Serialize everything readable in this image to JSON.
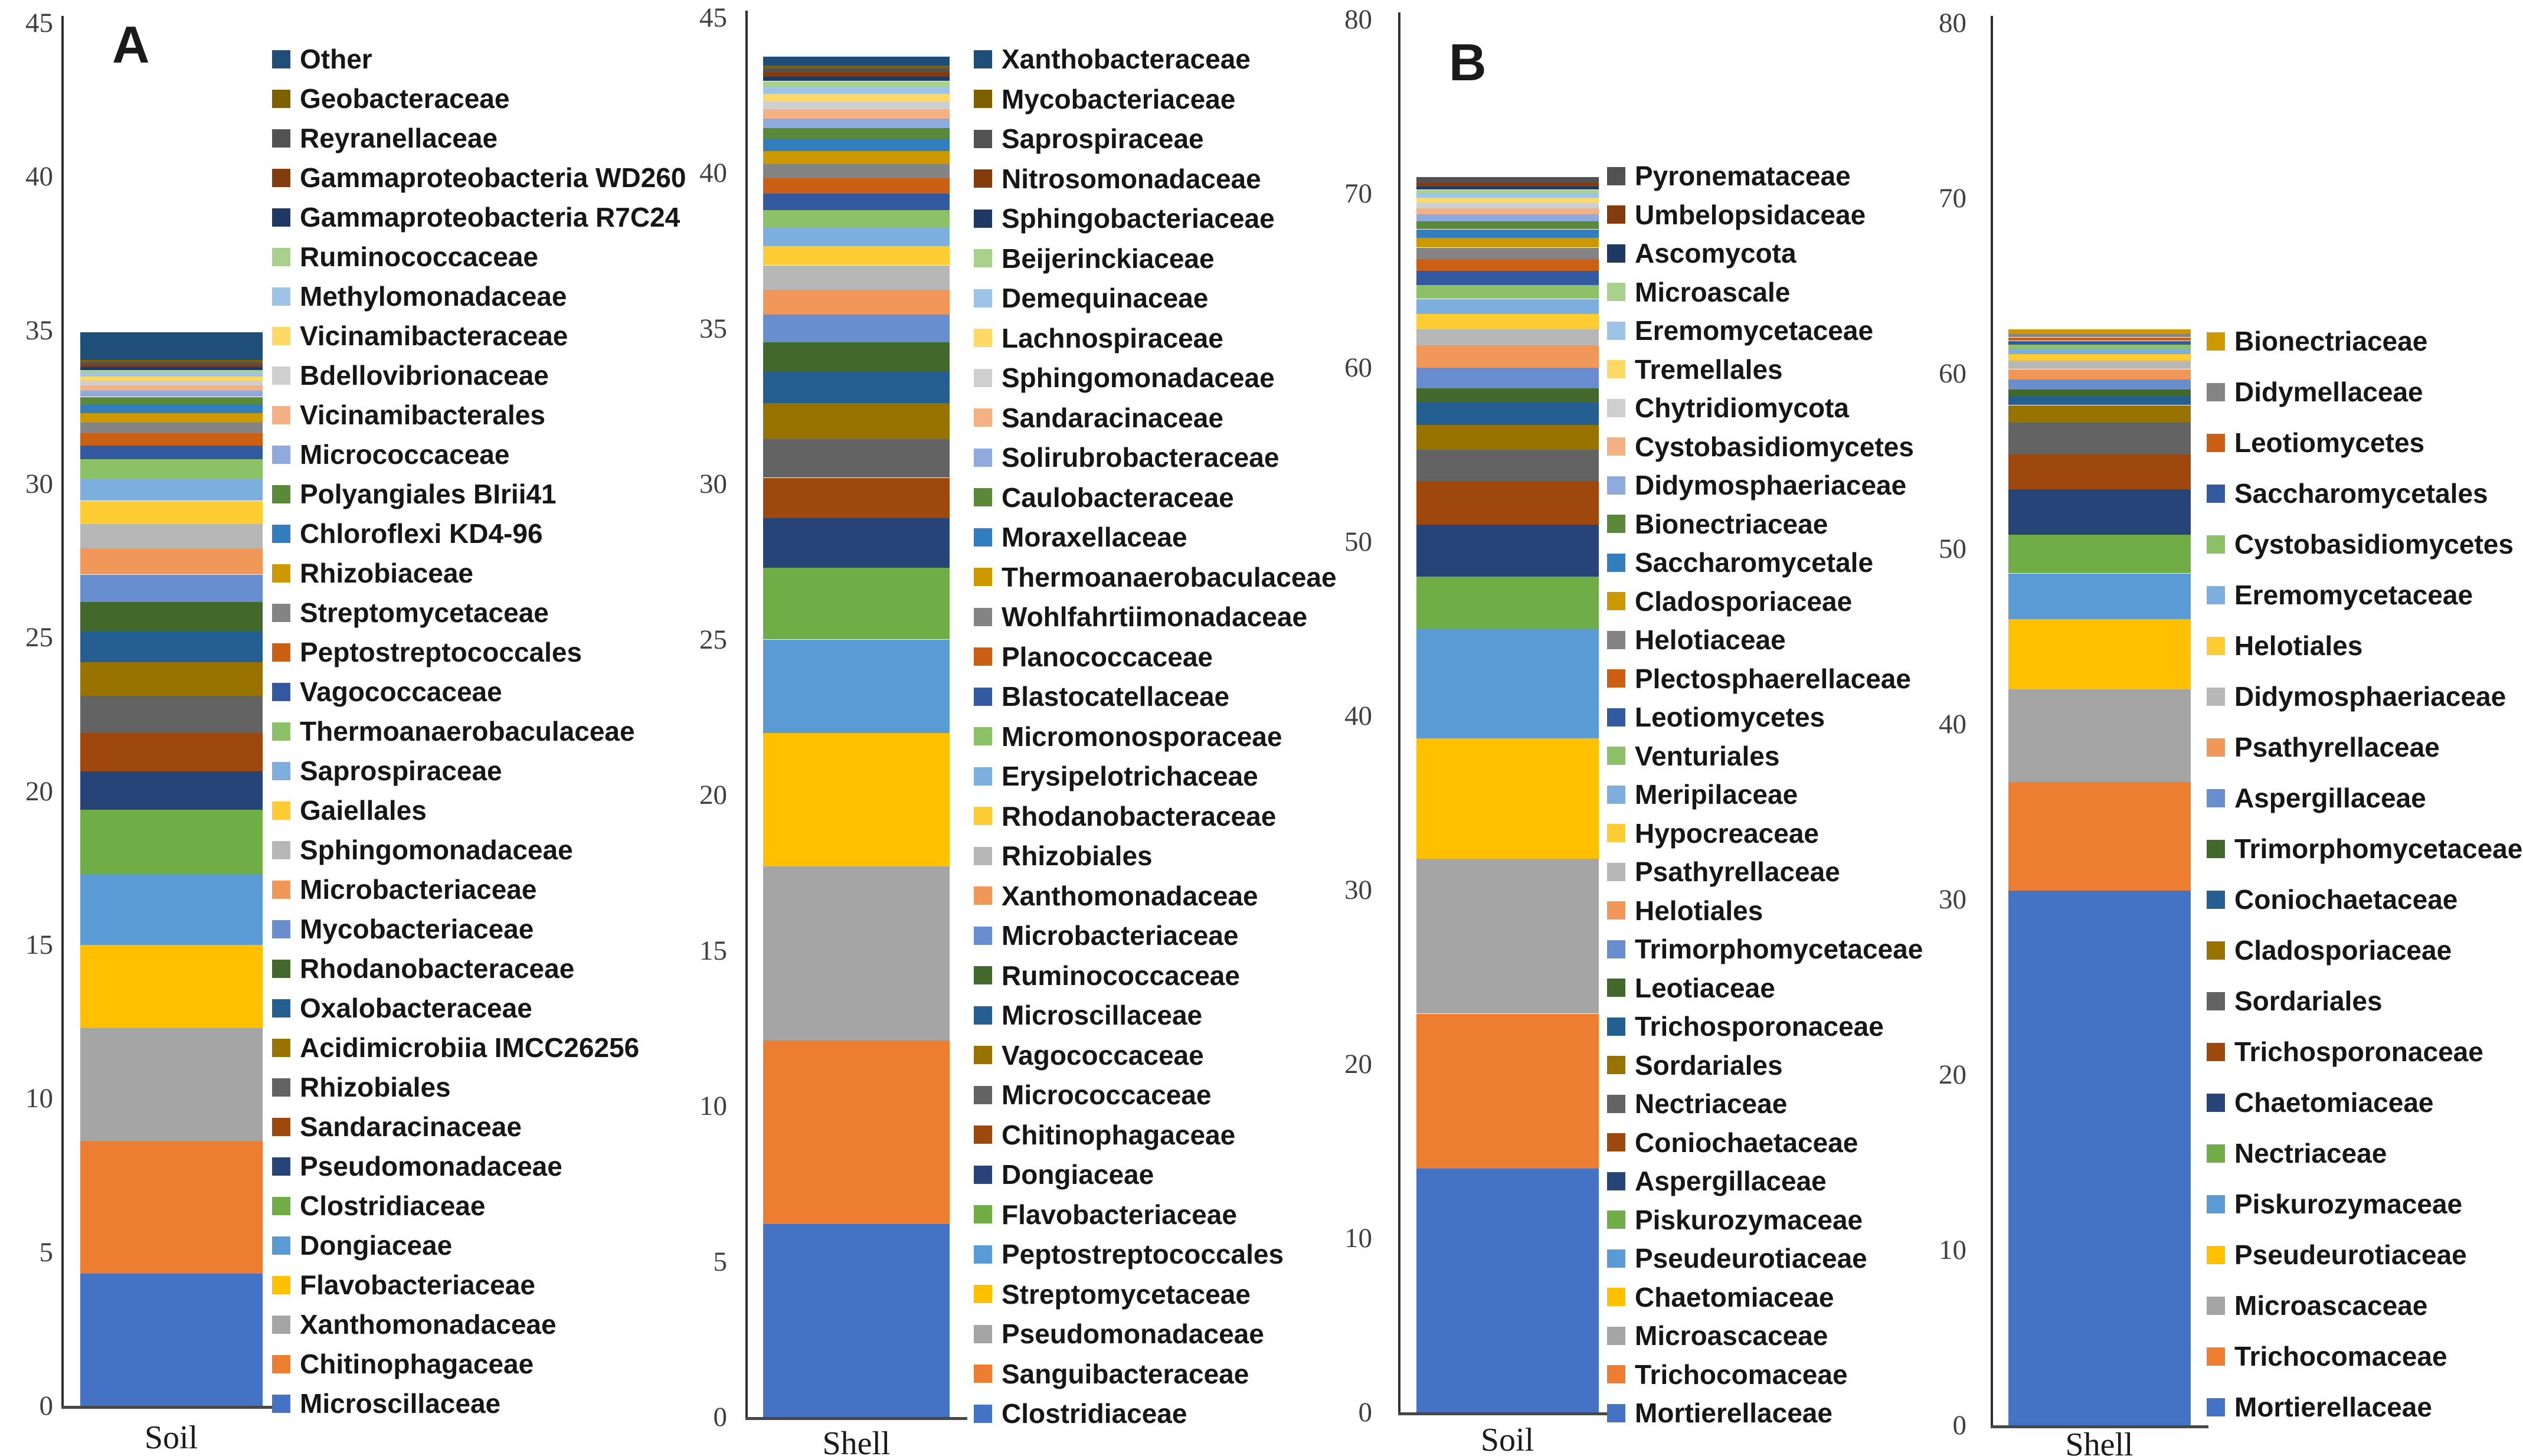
{
  "figure": {
    "panel_a_label": "A",
    "panel_b_label": "B"
  },
  "chart_data": [
    {
      "type": "bar",
      "stacked": true,
      "panel": "A",
      "category": "Soil",
      "xlabel": "",
      "ylabel": "",
      "ylim": [
        0,
        45
      ],
      "ytick_step": 5,
      "grid": false,
      "legend_position": "right",
      "series": [
        {
          "label": "Microscillaceae",
          "value": 4.3,
          "color": "#4472C4"
        },
        {
          "label": "Chitinophagaceae",
          "value": 4.3,
          "color": "#ED7D31"
        },
        {
          "label": "Xanthomonadaceae",
          "value": 3.7,
          "color": "#A5A5A5"
        },
        {
          "label": "Flavobacteriaceae",
          "value": 2.7,
          "color": "#FFC000"
        },
        {
          "label": "Dongiaceae",
          "value": 2.3,
          "color": "#5B9BD5"
        },
        {
          "label": "Clostridiaceae",
          "value": 2.1,
          "color": "#70AD47"
        },
        {
          "label": "Pseudomonadaceae",
          "value": 1.25,
          "color": "#264478"
        },
        {
          "label": "Sandaracinaceae",
          "value": 1.25,
          "color": "#9E480E"
        },
        {
          "label": "Rhizobiales",
          "value": 1.2,
          "color": "#636363"
        },
        {
          "label": "Acidimicrobiia IMCC26256",
          "value": 1.1,
          "color": "#997300"
        },
        {
          "label": "Oxalobacteraceae",
          "value": 1.0,
          "color": "#255E91"
        },
        {
          "label": "Rhodanobacteraceae",
          "value": 0.95,
          "color": "#43682B"
        },
        {
          "label": "Mycobacteriaceae",
          "value": 0.9,
          "color": "#698ED0"
        },
        {
          "label": "Microbacteriaceae",
          "value": 0.85,
          "color": "#F1975A"
        },
        {
          "label": "Sphingomonadaceae",
          "value": 0.8,
          "color": "#B7B7B7"
        },
        {
          "label": "Gaiellales",
          "value": 0.75,
          "color": "#FFCD33"
        },
        {
          "label": "Saprospiraceae",
          "value": 0.7,
          "color": "#7CAFDD"
        },
        {
          "label": "Thermoanaerobaculaceae",
          "value": 0.65,
          "color": "#8CC168"
        },
        {
          "label": "Vagococcaceae",
          "value": 0.45,
          "color": "#335AA1"
        },
        {
          "label": "Peptostreptococcales",
          "value": 0.4,
          "color": "#CB6015"
        },
        {
          "label": "Streptomycetaceae",
          "value": 0.35,
          "color": "#848484"
        },
        {
          "label": "Rhizobiaceae",
          "value": 0.3,
          "color": "#CC9A00"
        },
        {
          "label": "Chloroflexi KD4-96",
          "value": 0.28,
          "color": "#327DBD"
        },
        {
          "label": "Polyangiales BIrii41",
          "value": 0.25,
          "color": "#5A8A39"
        },
        {
          "label": "Micrococcaceae",
          "value": 0.2,
          "color": "#8FAADC"
        },
        {
          "label": "Vicinamibacterales",
          "value": 0.18,
          "color": "#F4B183"
        },
        {
          "label": "Bdellovibrionaceae",
          "value": 0.15,
          "color": "#CFCFCF"
        },
        {
          "label": "Vicinamibacteraceae",
          "value": 0.13,
          "color": "#FFD966"
        },
        {
          "label": "Methylomonadaceae",
          "value": 0.12,
          "color": "#9DC3E6"
        },
        {
          "label": "Ruminococcaceae",
          "value": 0.1,
          "color": "#A9D18E"
        },
        {
          "label": "Gammaproteobacteria R7C24",
          "value": 0.09,
          "color": "#203864"
        },
        {
          "label": "Gammaproteobacteria WD260",
          "value": 0.08,
          "color": "#843C0C"
        },
        {
          "label": "Reyranellaceae",
          "value": 0.08,
          "color": "#525252"
        },
        {
          "label": "Geobacteraceae",
          "value": 0.07,
          "color": "#7F6000"
        },
        {
          "label": "Other",
          "value": 0.9,
          "color": "#1F4E79"
        }
      ]
    },
    {
      "type": "bar",
      "stacked": true,
      "panel": "A",
      "category": "Shell",
      "xlabel": "",
      "ylabel": "",
      "ylim": [
        0,
        45
      ],
      "ytick_step": 5,
      "grid": false,
      "legend_position": "right",
      "series": [
        {
          "label": "Clostridiaceae",
          "value": 6.2,
          "color": "#4472C4"
        },
        {
          "label": "Sanguibacteraceae",
          "value": 5.9,
          "color": "#ED7D31"
        },
        {
          "label": "Pseudomonadaceae",
          "value": 5.6,
          "color": "#A5A5A5"
        },
        {
          "label": "Streptomycetaceae",
          "value": 4.3,
          "color": "#FFC000"
        },
        {
          "label": "Peptostreptococcales",
          "value": 3.0,
          "color": "#5B9BD5"
        },
        {
          "label": "Flavobacteriaceae",
          "value": 2.3,
          "color": "#70AD47"
        },
        {
          "label": "Dongiaceae",
          "value": 1.6,
          "color": "#264478"
        },
        {
          "label": "Chitinophagaceae",
          "value": 1.3,
          "color": "#9E480E"
        },
        {
          "label": "Micrococcaceae",
          "value": 1.25,
          "color": "#636363"
        },
        {
          "label": "Vagococcaceae",
          "value": 1.15,
          "color": "#997300"
        },
        {
          "label": "Microscillaceae",
          "value": 1.0,
          "color": "#255E91"
        },
        {
          "label": "Ruminococcaceae",
          "value": 0.95,
          "color": "#43682B"
        },
        {
          "label": "Microbacteriaceae",
          "value": 0.9,
          "color": "#698ED0"
        },
        {
          "label": "Xanthomonadaceae",
          "value": 0.8,
          "color": "#F1975A"
        },
        {
          "label": "Rhizobiales",
          "value": 0.78,
          "color": "#B7B7B7"
        },
        {
          "label": "Rhodanobacteraceae",
          "value": 0.62,
          "color": "#FFCD33"
        },
        {
          "label": "Erysipelotrichaceae",
          "value": 0.6,
          "color": "#7CAFDD"
        },
        {
          "label": "Micromonosporaceae",
          "value": 0.56,
          "color": "#8CC168"
        },
        {
          "label": "Blastocatellaceae",
          "value": 0.52,
          "color": "#335AA1"
        },
        {
          "label": "Planococcaceae",
          "value": 0.5,
          "color": "#CB6015"
        },
        {
          "label": "Wohlfahrtiimonadaceae",
          "value": 0.45,
          "color": "#848484"
        },
        {
          "label": "Thermoanaerobaculaceae",
          "value": 0.42,
          "color": "#CC9A00"
        },
        {
          "label": "Moraxellaceae",
          "value": 0.4,
          "color": "#327DBD"
        },
        {
          "label": "Caulobacteraceae",
          "value": 0.35,
          "color": "#5A8A39"
        },
        {
          "label": "Solirubrobacteraceae",
          "value": 0.3,
          "color": "#8FAADC"
        },
        {
          "label": "Sandaracinaceae",
          "value": 0.3,
          "color": "#F4B183"
        },
        {
          "label": "Sphingomonadaceae",
          "value": 0.25,
          "color": "#CFCFCF"
        },
        {
          "label": "Lachnospiraceae",
          "value": 0.25,
          "color": "#FFD966"
        },
        {
          "label": "Demequinaceae",
          "value": 0.2,
          "color": "#9DC3E6"
        },
        {
          "label": "Beijerinckiaceae",
          "value": 0.2,
          "color": "#A9D18E"
        },
        {
          "label": "Sphingobacteriaceae",
          "value": 0.15,
          "color": "#203864"
        },
        {
          "label": "Nitrosomonadaceae",
          "value": 0.14,
          "color": "#843C0C"
        },
        {
          "label": "Saprospiraceae",
          "value": 0.12,
          "color": "#525252"
        },
        {
          "label": "Mycobacteriaceae",
          "value": 0.1,
          "color": "#7F6000"
        },
        {
          "label": "Xanthobacteraceae",
          "value": 0.28,
          "color": "#1F4E79"
        }
      ]
    },
    {
      "type": "bar",
      "stacked": true,
      "panel": "B",
      "category": "Soil",
      "xlabel": "",
      "ylabel": "",
      "ylim": [
        0,
        80
      ],
      "ytick_step": 10,
      "grid": false,
      "legend_position": "right",
      "series": [
        {
          "label": "Mortierellaceae",
          "value": 14.0,
          "color": "#4472C4"
        },
        {
          "label": "Trichocomaceae",
          "value": 8.9,
          "color": "#ED7D31"
        },
        {
          "label": "Microascaceae",
          "value": 8.9,
          "color": "#A5A5A5"
        },
        {
          "label": "Chaetomiaceae",
          "value": 6.9,
          "color": "#FFC000"
        },
        {
          "label": "Pseudeurotiaceae",
          "value": 6.3,
          "color": "#5B9BD5"
        },
        {
          "label": "Piskurozymaceae",
          "value": 3.0,
          "color": "#70AD47"
        },
        {
          "label": "Aspergillaceae",
          "value": 3.0,
          "color": "#264478"
        },
        {
          "label": "Coniochaetaceae",
          "value": 2.5,
          "color": "#9E480E"
        },
        {
          "label": "Nectriaceae",
          "value": 1.8,
          "color": "#636363"
        },
        {
          "label": "Sordariales",
          "value": 1.4,
          "color": "#997300"
        },
        {
          "label": "Trichosporonaceae",
          "value": 1.3,
          "color": "#255E91"
        },
        {
          "label": "Leotiaceae",
          "value": 0.8,
          "color": "#43682B"
        },
        {
          "label": "Trimorphomycetaceae",
          "value": 1.2,
          "color": "#698ED0"
        },
        {
          "label": "Helotiales",
          "value": 1.3,
          "color": "#F1975A"
        },
        {
          "label": "Psathyrellaceae",
          "value": 0.9,
          "color": "#B7B7B7"
        },
        {
          "label": "Hypocreaceae",
          "value": 0.9,
          "color": "#FFCD33"
        },
        {
          "label": "Meripilaceae",
          "value": 0.85,
          "color": "#7CAFDD"
        },
        {
          "label": "Venturiales",
          "value": 0.8,
          "color": "#8CC168"
        },
        {
          "label": "Leotiomycetes",
          "value": 0.8,
          "color": "#335AA1"
        },
        {
          "label": "Plectosphaerellaceae",
          "value": 0.7,
          "color": "#CB6015"
        },
        {
          "label": "Helotiaceae",
          "value": 0.65,
          "color": "#848484"
        },
        {
          "label": "Cladosporiaceae",
          "value": 0.55,
          "color": "#CC9A00"
        },
        {
          "label": "Saccharomycetale",
          "value": 0.5,
          "color": "#327DBD"
        },
        {
          "label": "Bionectriaceae",
          "value": 0.45,
          "color": "#5A8A39"
        },
        {
          "label": "Didymosphaeriaceae",
          "value": 0.4,
          "color": "#8FAADC"
        },
        {
          "label": "Cystobasidiomycetes",
          "value": 0.35,
          "color": "#F4B183"
        },
        {
          "label": "Chytridiomycota",
          "value": 0.3,
          "color": "#CFCFCF"
        },
        {
          "label": "Tremellales",
          "value": 0.3,
          "color": "#FFD966"
        },
        {
          "label": "Eremomycetaceae",
          "value": 0.25,
          "color": "#9DC3E6"
        },
        {
          "label": "Microascale",
          "value": 0.22,
          "color": "#A9D18E"
        },
        {
          "label": "Ascomycota",
          "value": 0.2,
          "color": "#203864"
        },
        {
          "label": "Umbelopsidaceae",
          "value": 0.18,
          "color": "#843C0C"
        },
        {
          "label": "Pyronemataceae",
          "value": 0.35,
          "color": "#525252"
        }
      ]
    },
    {
      "type": "bar",
      "stacked": true,
      "panel": "B",
      "category": "Shell",
      "xlabel": "",
      "ylabel": "",
      "ylim": [
        0,
        80
      ],
      "ytick_step": 10,
      "grid": false,
      "legend_position": "right",
      "series": [
        {
          "label": "Mortierellaceae",
          "value": 30.5,
          "color": "#4472C4"
        },
        {
          "label": "Trichocomaceae",
          "value": 6.2,
          "color": "#ED7D31"
        },
        {
          "label": "Microascaceae",
          "value": 5.3,
          "color": "#A5A5A5"
        },
        {
          "label": "Pseudeurotiaceae",
          "value": 4.0,
          "color": "#FFC000"
        },
        {
          "label": "Piskurozymaceae",
          "value": 2.6,
          "color": "#5B9BD5"
        },
        {
          "label": "Nectriaceae",
          "value": 2.2,
          "color": "#70AD47"
        },
        {
          "label": "Chaetomiaceae",
          "value": 2.6,
          "color": "#264478"
        },
        {
          "label": "Trichosporonaceae",
          "value": 2.0,
          "color": "#9E480E"
        },
        {
          "label": "Sordariales",
          "value": 1.8,
          "color": "#636363"
        },
        {
          "label": "Cladosporiaceae",
          "value": 1.0,
          "color": "#997300"
        },
        {
          "label": "Coniochaetaceae",
          "value": 0.5,
          "color": "#255E91"
        },
        {
          "label": "Trimorphomycetaceae",
          "value": 0.4,
          "color": "#43682B"
        },
        {
          "label": "Aspergillaceae",
          "value": 0.55,
          "color": "#698ED0"
        },
        {
          "label": "Psathyrellaceae",
          "value": 0.6,
          "color": "#F1975A"
        },
        {
          "label": "Didymosphaeriaceae",
          "value": 0.5,
          "color": "#B7B7B7"
        },
        {
          "label": "Helotiales",
          "value": 0.35,
          "color": "#FFCD33"
        },
        {
          "label": "Eremomycetaceae",
          "value": 0.3,
          "color": "#7CAFDD"
        },
        {
          "label": "Cystobasidiomycetes",
          "value": 0.25,
          "color": "#8CC168"
        },
        {
          "label": "Saccharomycetales",
          "value": 0.22,
          "color": "#335AA1"
        },
        {
          "label": "Leotiomycetes",
          "value": 0.2,
          "color": "#CB6015"
        },
        {
          "label": "Didymellaceae",
          "value": 0.2,
          "color": "#848484"
        },
        {
          "label": "Bionectriaceae",
          "value": 0.25,
          "color": "#CC9A00"
        }
      ]
    }
  ]
}
